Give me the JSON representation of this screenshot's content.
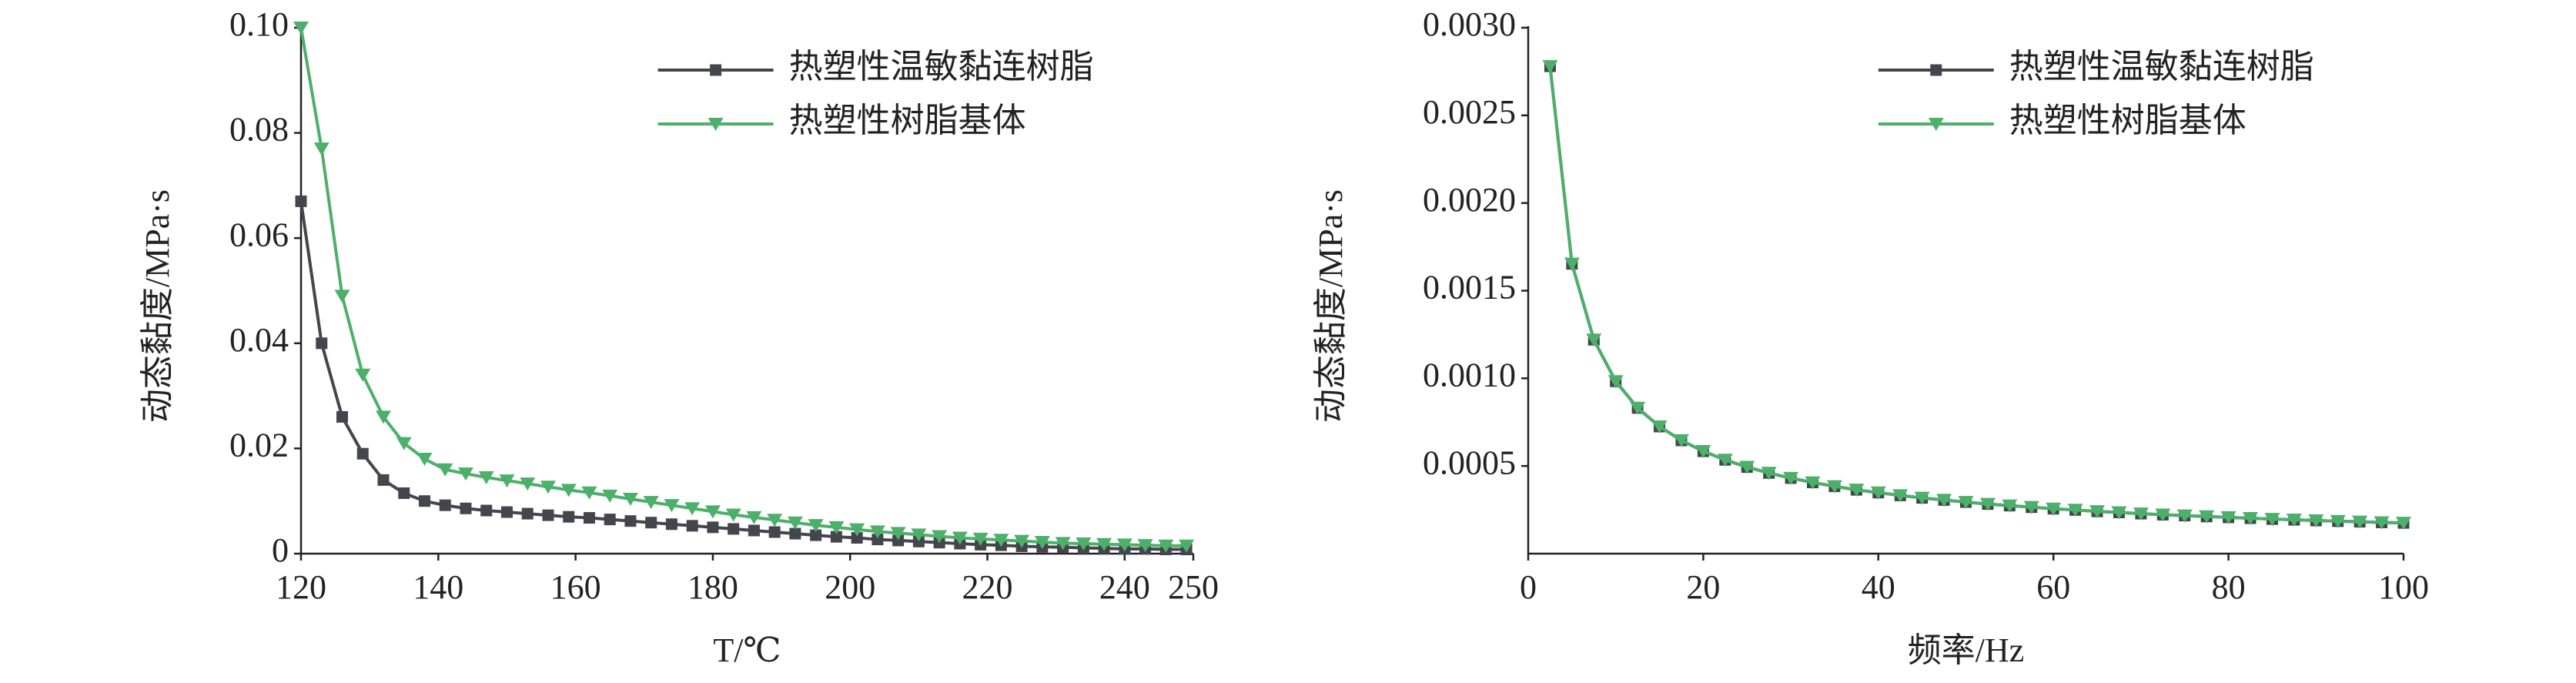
{
  "chart_data": [
    {
      "type": "line",
      "xlabel": "T/℃",
      "ylabel": "动态黏度/MPa·s",
      "legend": "upper center",
      "xlim": [
        120,
        250
      ],
      "xticks": [
        120,
        140,
        160,
        180,
        200,
        220,
        240,
        250
      ],
      "ylim": [
        0,
        0.1
      ],
      "yticks": [
        0,
        0.02,
        0.04,
        0.06,
        0.08,
        {
          "value": 0.1,
          "label": "0.10"
        }
      ],
      "x": [
        120,
        123,
        126,
        129,
        132,
        135,
        138,
        141,
        144,
        147,
        150,
        153,
        156,
        159,
        162,
        165,
        168,
        171,
        174,
        177,
        180,
        183,
        186,
        189,
        192,
        195,
        198,
        201,
        204,
        207,
        210,
        213,
        216,
        219,
        222,
        225,
        228,
        231,
        234,
        237,
        240,
        243,
        246,
        249
      ],
      "series": [
        {
          "name": "热塑性温敏黏连树脂",
          "color": "#45454d",
          "marker": "square",
          "values": [
            0.067,
            0.04,
            0.026,
            0.019,
            0.014,
            0.0115,
            0.01,
            0.0092,
            0.0086,
            0.0082,
            0.0079,
            0.0076,
            0.0073,
            0.007,
            0.0068,
            0.0065,
            0.0062,
            0.0059,
            0.0056,
            0.0053,
            0.005,
            0.0047,
            0.0044,
            0.0041,
            0.0038,
            0.0035,
            0.0032,
            0.003,
            0.0027,
            0.0025,
            0.0023,
            0.0021,
            0.0019,
            0.0017,
            0.0016,
            0.0014,
            0.0013,
            0.0012,
            0.0011,
            0.001,
            0.0009,
            0.0009,
            0.0008,
            0.0008
          ]
        },
        {
          "name": "热塑性树脂基体",
          "color": "#4caf6a",
          "marker": "triangle-down",
          "values": [
            0.1,
            0.077,
            0.049,
            0.034,
            0.026,
            0.021,
            0.018,
            0.016,
            0.0152,
            0.0145,
            0.0139,
            0.0133,
            0.0127,
            0.0121,
            0.0116,
            0.011,
            0.0104,
            0.0098,
            0.0092,
            0.0086,
            0.008,
            0.0074,
            0.0069,
            0.0064,
            0.0059,
            0.0054,
            0.005,
            0.0046,
            0.0042,
            0.0039,
            0.0036,
            0.0033,
            0.003,
            0.0028,
            0.0026,
            0.0024,
            0.0022,
            0.002,
            0.0019,
            0.0018,
            0.0017,
            0.0016,
            0.0015,
            0.0015
          ]
        }
      ]
    },
    {
      "type": "line",
      "xlabel": "频率/Hz",
      "ylabel": "动态黏度/MPa·s",
      "legend": "upper center",
      "xlim": [
        0,
        100
      ],
      "xticks": [
        0,
        20,
        40,
        60,
        80,
        100
      ],
      "ylim": [
        0,
        0.003
      ],
      "yticks": [
        0.0005,
        {
          "value": 0.001,
          "label": "0.0010"
        },
        0.0015,
        {
          "value": 0.002,
          "label": "0.0020"
        },
        0.0025,
        {
          "value": 0.003,
          "label": "0.0030"
        }
      ],
      "x": [
        2.5,
        5,
        7.5,
        10,
        12.5,
        15,
        17.5,
        20,
        22.5,
        25,
        27.5,
        30,
        32.5,
        35,
        37.5,
        40,
        42.5,
        45,
        47.5,
        50,
        52.5,
        55,
        57.5,
        60,
        62.5,
        65,
        67.5,
        70,
        72.5,
        75,
        77.5,
        80,
        82.5,
        85,
        87.5,
        90,
        92.5,
        95,
        97.5,
        100
      ],
      "series": [
        {
          "name": "热塑性温敏黏连树脂",
          "color": "#45454d",
          "marker": "square",
          "values": [
            0.00278,
            0.001653,
            0.00122,
            0.000983,
            0.000831,
            0.000725,
            0.000646,
            0.000584,
            0.000535,
            0.000494,
            0.00046,
            0.000431,
            0.000406,
            0.000384,
            0.000364,
            0.000348,
            0.000332,
            0.000318,
            0.000306,
            0.000294,
            0.000283,
            0.000274,
            0.000265,
            0.000256,
            0.000249,
            0.000241,
            0.000235,
            0.000228,
            0.000222,
            0.000217,
            0.000212,
            0.000207,
            0.000202,
            0.000197,
            0.000193,
            0.000189,
            0.000185,
            0.000182,
            0.000178,
            0.000175
          ]
        },
        {
          "name": "热塑性树脂基体",
          "color": "#4caf6a",
          "marker": "triangle-down",
          "values": [
            0.00278,
            0.001653,
            0.00122,
            0.000983,
            0.000831,
            0.000725,
            0.000646,
            0.000584,
            0.000535,
            0.000494,
            0.00046,
            0.000431,
            0.000406,
            0.000384,
            0.000364,
            0.000348,
            0.000332,
            0.000318,
            0.000306,
            0.000294,
            0.000283,
            0.000274,
            0.000265,
            0.000256,
            0.000249,
            0.000241,
            0.000235,
            0.000228,
            0.000222,
            0.000217,
            0.000212,
            0.000207,
            0.000202,
            0.000197,
            0.000193,
            0.000189,
            0.000185,
            0.000182,
            0.000178,
            0.000175
          ]
        }
      ]
    }
  ]
}
